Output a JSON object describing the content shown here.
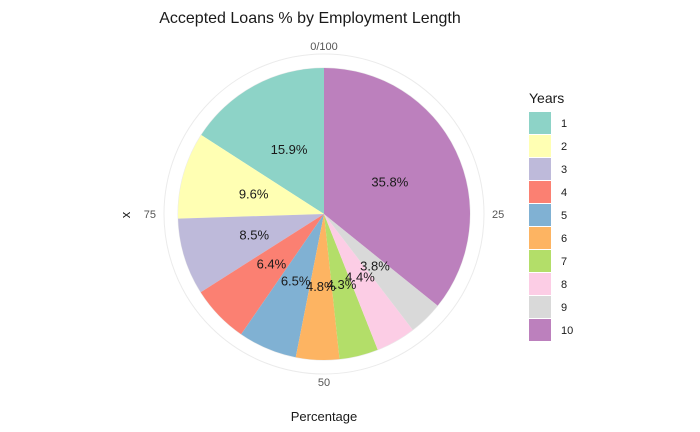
{
  "chart_data": {
    "type": "pie",
    "title": "Accepted Loans % by Employment Length",
    "xlabel": "Percentage",
    "ylabel": "x",
    "theta_ticks": [
      "0/100",
      "25",
      "50",
      "75"
    ],
    "legend": {
      "title": "Years",
      "position": "right"
    },
    "categories": [
      "1",
      "2",
      "3",
      "4",
      "5",
      "6",
      "7",
      "8",
      "9",
      "10"
    ],
    "values": [
      15.9,
      9.6,
      8.5,
      6.4,
      6.5,
      4.8,
      4.3,
      4.4,
      3.8,
      35.8
    ],
    "slice_labels": [
      "15.9%",
      "9.6%",
      "8.5%",
      "6.4%",
      "6.5%",
      "4.8%",
      "4.3%",
      "4.4%",
      "3.8%",
      "35.8%"
    ],
    "colors": [
      "#8DD3C7",
      "#FFFFB3",
      "#BEBADA",
      "#FB8072",
      "#80B1D3",
      "#FDB462",
      "#B3DE69",
      "#FCCDE5",
      "#D9D9D9",
      "#BC80BD"
    ],
    "direction": "counter-clockwise from top"
  }
}
